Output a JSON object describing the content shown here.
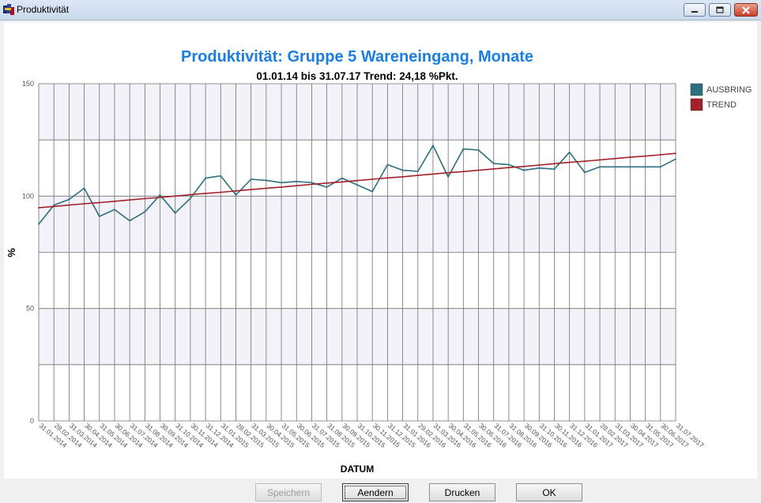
{
  "window": {
    "title": "Produktivität"
  },
  "buttons": {
    "save": "Speichern",
    "change": "Aendern",
    "print": "Drucken",
    "ok": "OK"
  },
  "colors": {
    "title": "#1a7fe0",
    "series": "#2c6f80",
    "trend": "#a3212a",
    "band": "#f3f2f9",
    "grid": "#707070"
  },
  "chart_data": {
    "type": "line",
    "title": "Produktivität: Gruppe 5 Wareneingang, Monate",
    "subtitle": "01.01.14 bis 31.07.17 Trend: 24,18 %Pkt.",
    "xlabel": "DATUM",
    "ylabel": "%",
    "ylim": [
      0,
      150
    ],
    "yticks": [
      0,
      50,
      100,
      150
    ],
    "grid": true,
    "legend_position": "right",
    "categories": [
      "31.01.2014",
      "28.02.2014",
      "31.03.2014",
      "30.04.2014",
      "31.05.2014",
      "30.06.2014",
      "31.07.2014",
      "31.08.2014",
      "30.09.2014",
      "31.10.2014",
      "30.11.2014",
      "31.12.2014",
      "31.01.2015",
      "28.02.2015",
      "31.03.2015",
      "30.04.2015",
      "31.05.2015",
      "30.06.2015",
      "31.07.2015",
      "31.08.2015",
      "30.09.2015",
      "31.10.2015",
      "30.11.2015",
      "31.12.2015",
      "31.01.2016",
      "29.02.2016",
      "31.03.2016",
      "30.04.2016",
      "31.05.2016",
      "30.06.2016",
      "31.07.2016",
      "31.08.2016",
      "30.09.2016",
      "31.10.2016",
      "30.11.2016",
      "31.12.2016",
      "31.01.2017",
      "28.02.2017",
      "31.03.2017",
      "30.04.2017",
      "31.05.2017",
      "30.06.2017",
      "31.07.2017"
    ],
    "series": [
      {
        "name": "AUSBRING",
        "values": [
          87.5,
          96,
          98.5,
          103.5,
          91,
          94,
          89,
          93,
          100.5,
          92.5,
          99,
          108,
          109,
          100.5,
          107.5,
          107,
          106,
          106.5,
          106,
          104,
          108,
          105,
          102,
          114,
          111.5,
          111,
          122.5,
          108.5,
          121,
          120.5,
          114.5,
          114,
          111.5,
          112.5,
          112,
          119.5,
          110.5,
          113,
          113,
          113,
          113,
          113,
          116.5
        ]
      },
      {
        "name": "TREND",
        "values": [
          94.8,
          95.4,
          96.0,
          96.6,
          97.1,
          97.7,
          98.3,
          98.9,
          99.4,
          100.0,
          100.6,
          101.2,
          101.7,
          102.3,
          102.9,
          103.5,
          104.0,
          104.6,
          105.2,
          105.8,
          106.3,
          106.9,
          107.5,
          108.1,
          108.6,
          109.2,
          109.8,
          110.4,
          110.9,
          111.5,
          112.1,
          112.7,
          113.2,
          113.8,
          114.4,
          115.0,
          115.5,
          116.1,
          116.7,
          117.3,
          117.8,
          118.4,
          119.0
        ]
      }
    ]
  }
}
